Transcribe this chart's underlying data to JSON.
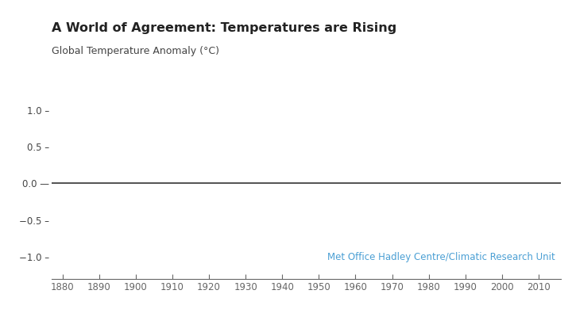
{
  "title": "A World of Agreement: Temperatures are Rising",
  "ylabel": "Global Temperature Anomaly (°C)",
  "xlim": [
    1877,
    2016
  ],
  "ylim": [
    -1.3,
    1.2
  ],
  "yticks": [
    -1.0,
    -0.5,
    0.0,
    0.5,
    1.0
  ],
  "xticks": [
    1880,
    1890,
    1900,
    1910,
    1920,
    1930,
    1940,
    1950,
    1960,
    1970,
    1980,
    1990,
    2000,
    2010
  ],
  "zero_line_color": "#333333",
  "zero_line_lw": 1.2,
  "source_text": "Met Office Hadley Centre/Climatic Research Unit",
  "source_color": "#4a9fd4",
  "background_color": "#ffffff",
  "title_fontsize": 11.5,
  "ylabel_fontsize": 9,
  "tick_fontsize": 8.5,
  "source_fontsize": 8.5
}
